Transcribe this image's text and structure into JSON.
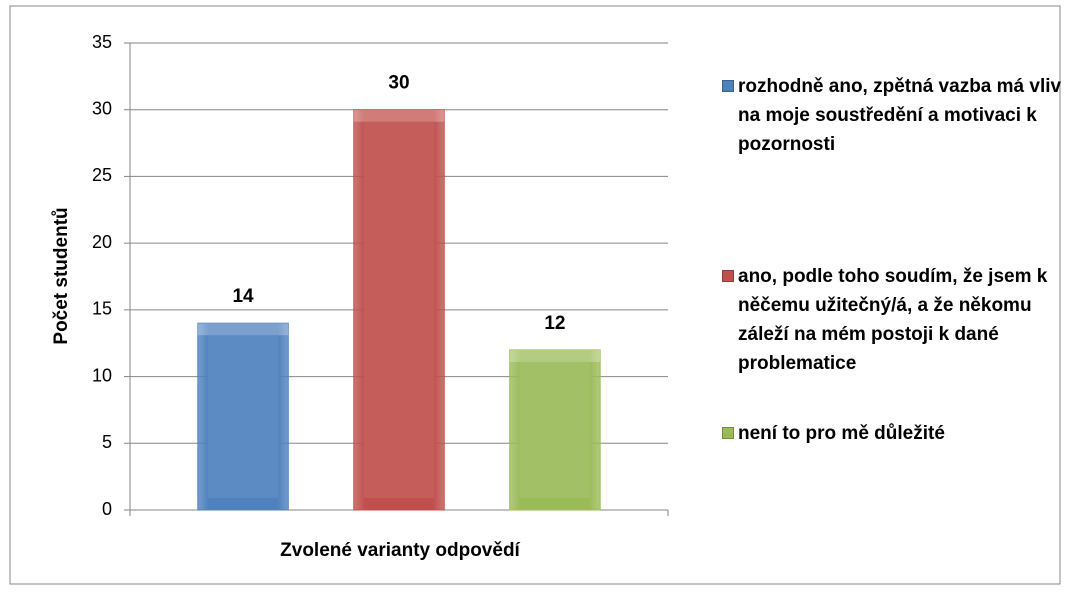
{
  "chart_data": {
    "type": "bar",
    "categories": [
      null
    ],
    "series": [
      {
        "name": "rozhodně ano, zpětná vazba má vliv na moje soustředění a motivaci k pozornosti",
        "color": "#4f81bd",
        "values": [
          14
        ]
      },
      {
        "name": "ano, podle toho soudím, že jsem k něčemu užitečný/á, a že někomu záleží na mém postoji k dané problematice",
        "color": "#c0504d",
        "values": [
          30
        ]
      },
      {
        "name": "není to pro mě důležité",
        "color": "#9bbb59",
        "values": [
          12
        ]
      }
    ],
    "x_label": "Zvolené varianty odpovědí",
    "y_label": "Počet studentů",
    "ylim": [
      0,
      35
    ],
    "yticks": [
      0,
      5,
      10,
      15,
      20,
      25,
      30,
      35
    ],
    "grid": true,
    "legend": "right"
  }
}
